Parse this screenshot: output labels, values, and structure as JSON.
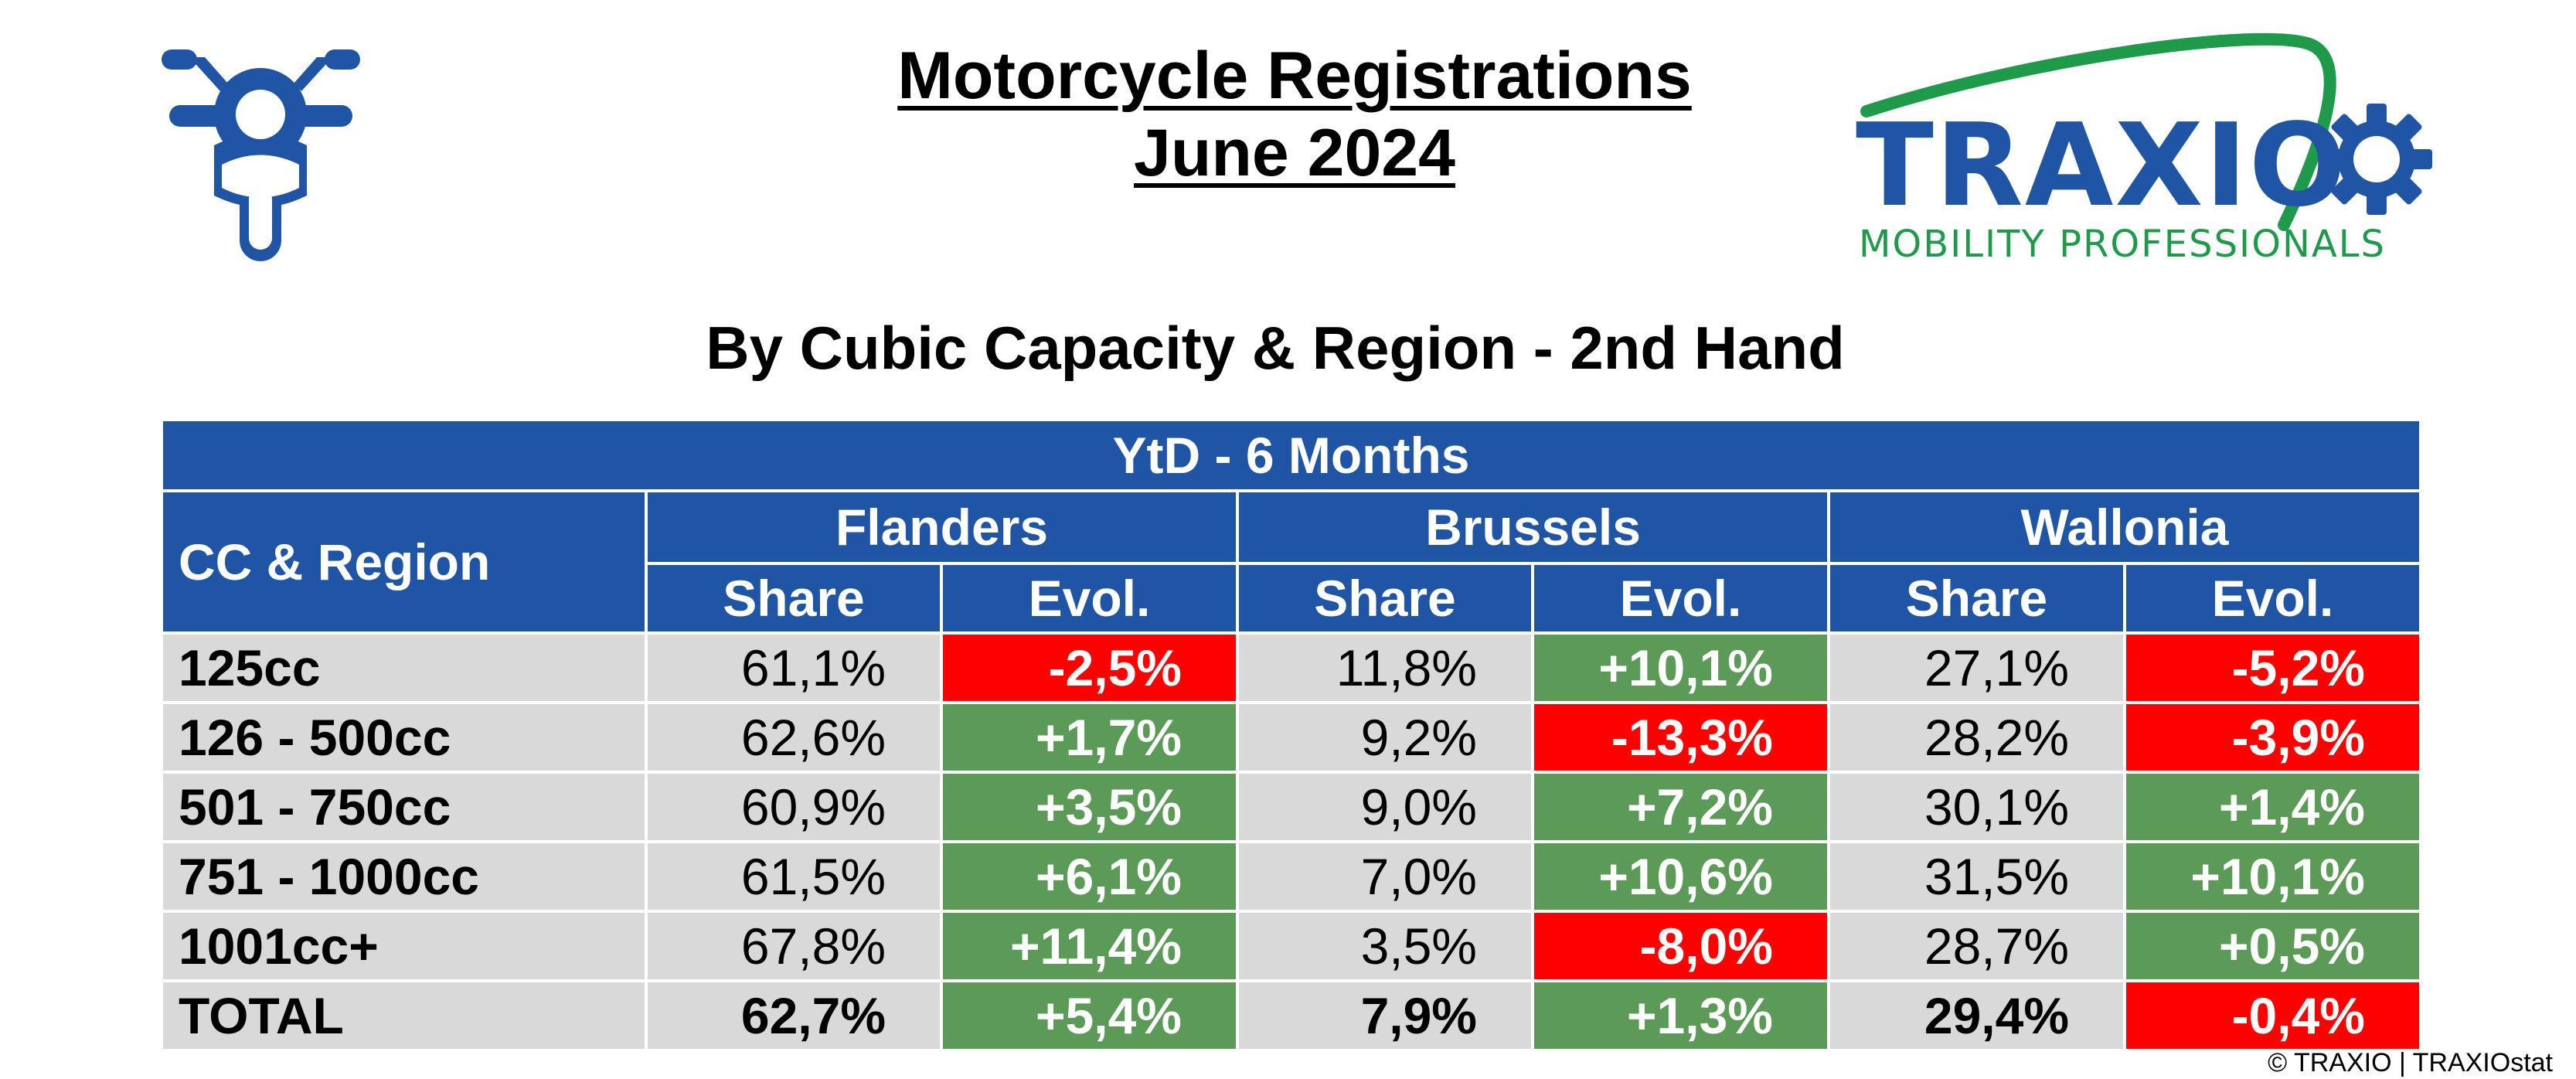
{
  "header": {
    "title_line1": "Motorcycle Registrations",
    "title_line2": "June 2024",
    "subtitle": "By Cubic Capacity & Region - 2nd Hand"
  },
  "logo": {
    "wordmark": "TRAXIO",
    "tagline": "MOBILITY PROFESSIONALS",
    "colors": {
      "blue": "#2054a5",
      "green": "#1f9a4a"
    }
  },
  "icons": {
    "motorcycle": "motorcycle-icon"
  },
  "table": {
    "period": "YtD - 6 Months",
    "row_header": "CC & Region",
    "regions": [
      "Flanders",
      "Brussels",
      "Wallonia"
    ],
    "col_share": "Share",
    "col_evol": "Evol.",
    "rows": [
      {
        "label": "125cc",
        "flanders_share": "61,1%",
        "flanders_evol": "-2,5%",
        "brussels_share": "11,8%",
        "brussels_evol": "+10,1%",
        "wallonia_share": "27,1%",
        "wallonia_evol": "-5,2%"
      },
      {
        "label": "126 - 500cc",
        "flanders_share": "62,6%",
        "flanders_evol": "+1,7%",
        "brussels_share": "9,2%",
        "brussels_evol": "-13,3%",
        "wallonia_share": "28,2%",
        "wallonia_evol": "-3,9%"
      },
      {
        "label": "501 - 750cc",
        "flanders_share": "60,9%",
        "flanders_evol": "+3,5%",
        "brussels_share": "9,0%",
        "brussels_evol": "+7,2%",
        "wallonia_share": "30,1%",
        "wallonia_evol": "+1,4%"
      },
      {
        "label": "751 - 1000cc",
        "flanders_share": "61,5%",
        "flanders_evol": "+6,1%",
        "brussels_share": "7,0%",
        "brussels_evol": "+10,6%",
        "wallonia_share": "31,5%",
        "wallonia_evol": "+10,1%"
      },
      {
        "label": "1001cc+",
        "flanders_share": "67,8%",
        "flanders_evol": "+11,4%",
        "brussels_share": "3,5%",
        "brussels_evol": "-8,0%",
        "wallonia_share": "28,7%",
        "wallonia_evol": "+0,5%"
      },
      {
        "label": "TOTAL",
        "flanders_share": "62,7%",
        "flanders_evol": "+5,4%",
        "brussels_share": "7,9%",
        "brussels_evol": "+1,3%",
        "wallonia_share": "29,4%",
        "wallonia_evol": "-0,4%"
      }
    ],
    "colors": {
      "header_bg": "#2054a5",
      "row_bg": "#d9d9d9",
      "positive": "#5b9a57",
      "negative": "#ff0000"
    }
  },
  "footer": {
    "copyright": "© TRAXIO | TRAXIOstat"
  }
}
